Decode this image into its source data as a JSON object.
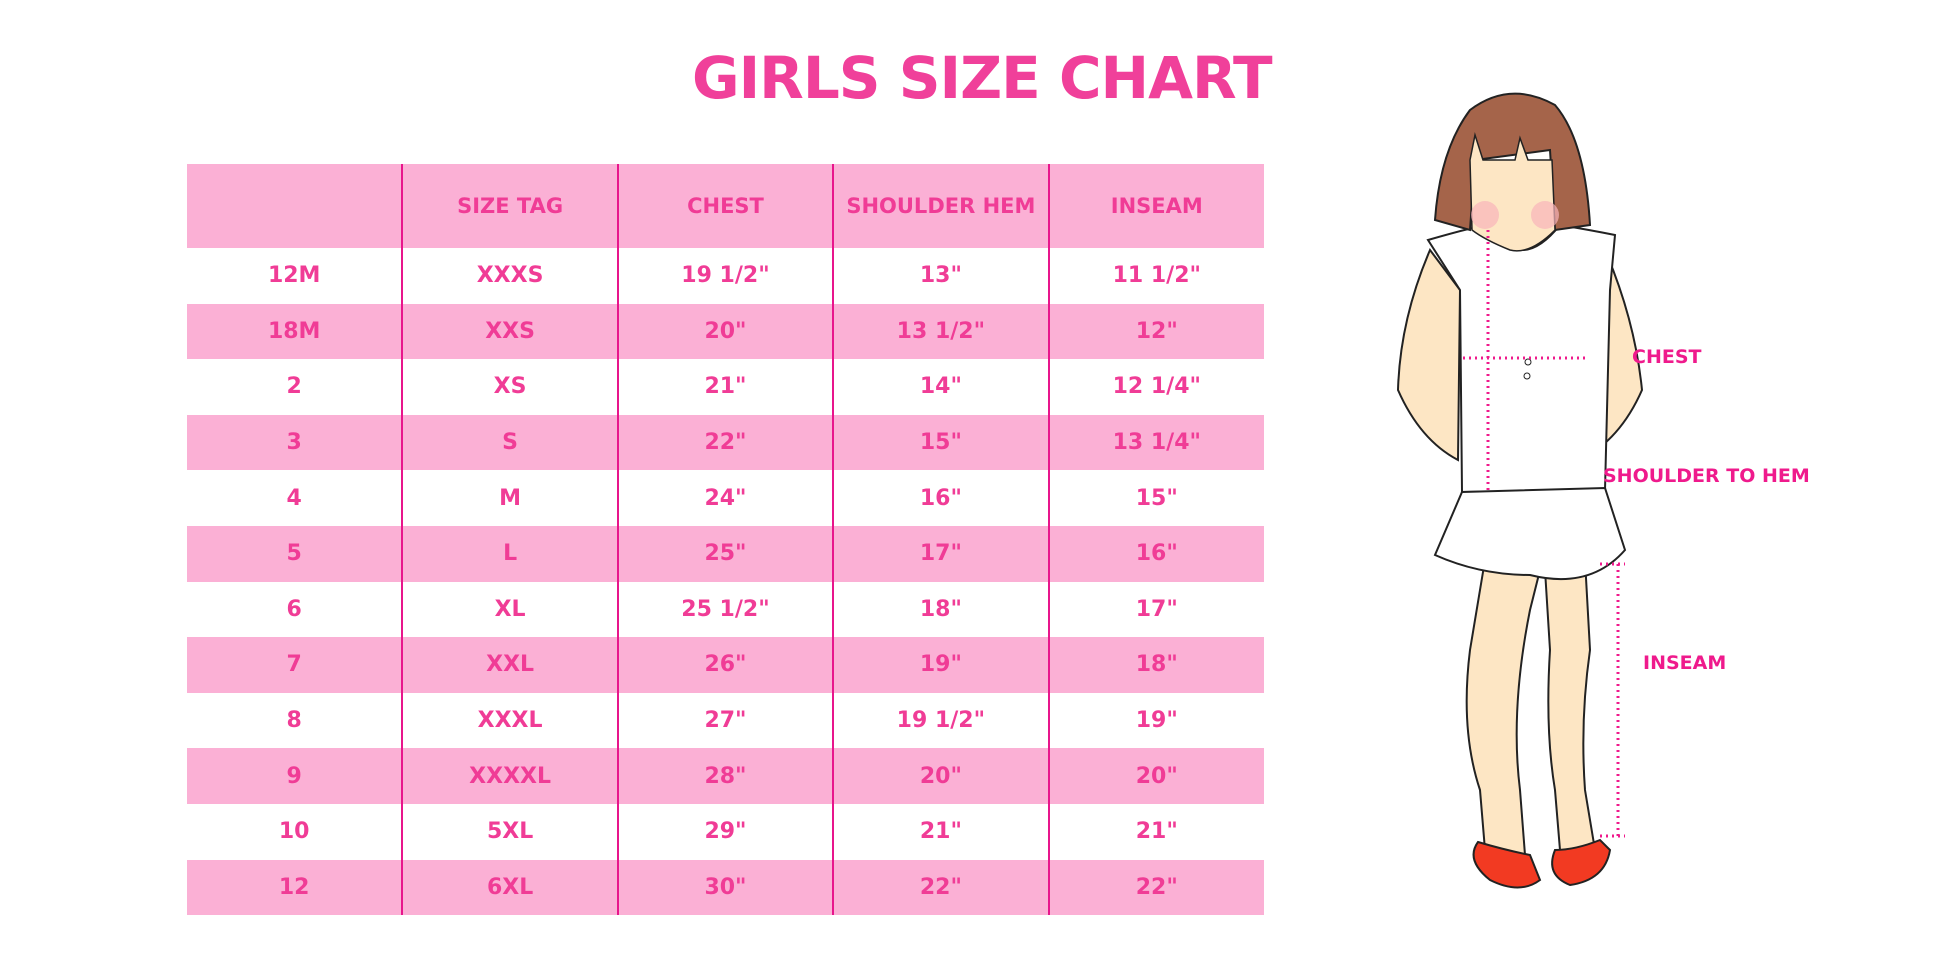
{
  "title": "GIRLS SIZE CHART",
  "colors": {
    "accent": "#f03c96",
    "row_fill": "#fbb0d5",
    "divider": "#e8158c"
  },
  "table": {
    "headers": [
      "",
      "SIZE TAG",
      "CHEST",
      "SHOULDER HEM",
      "INSEAM"
    ],
    "rows": [
      [
        "12M",
        "XXXS",
        "19 1/2\"",
        "13\"",
        "11 1/2\""
      ],
      [
        "18M",
        "XXS",
        "20\"",
        "13 1/2\"",
        "12\""
      ],
      [
        "2",
        "XS",
        "21\"",
        "14\"",
        "12 1/4\""
      ],
      [
        "3",
        "S",
        "22\"",
        "15\"",
        "13 1/4\""
      ],
      [
        "4",
        "M",
        "24\"",
        "16\"",
        "15\""
      ],
      [
        "5",
        "L",
        "25\"",
        "17\"",
        "16\""
      ],
      [
        "6",
        "XL",
        "25 1/2\"",
        "18\"",
        "17\""
      ],
      [
        "7",
        "XXL",
        "26\"",
        "19\"",
        "18\""
      ],
      [
        "8",
        "XXXL",
        "27\"",
        "19 1/2\"",
        "19\""
      ],
      [
        "9",
        "XXXXL",
        "28\"",
        "20\"",
        "20\""
      ],
      [
        "10",
        "5XL",
        "29\"",
        "21\"",
        "21\""
      ],
      [
        "12",
        "6XL",
        "30\"",
        "22\"",
        "22\""
      ]
    ]
  },
  "figure": {
    "labels": {
      "chest": "CHEST",
      "shoulder_to_hem": "SHOULDER TO HEM",
      "inseam": "INSEAM"
    }
  }
}
